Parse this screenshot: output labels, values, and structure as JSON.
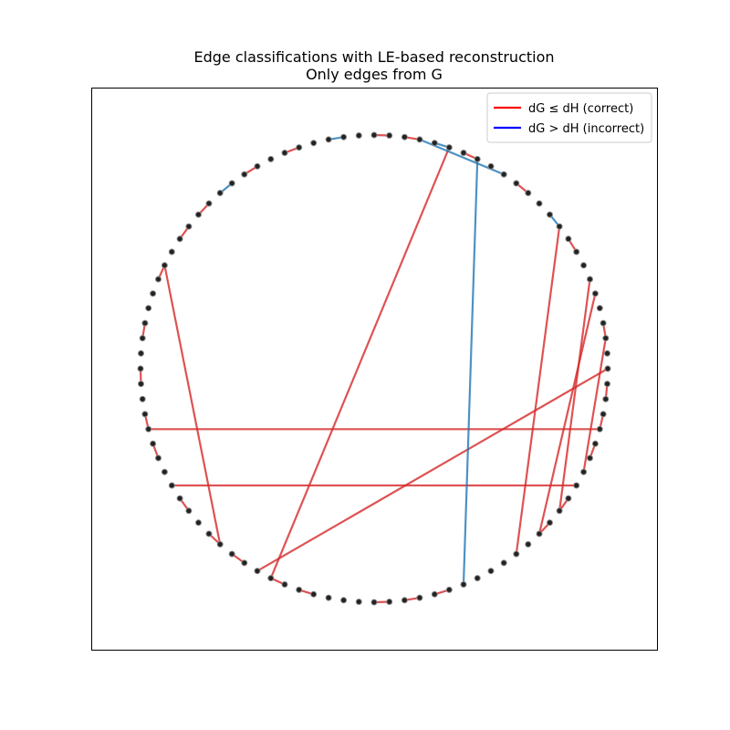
{
  "figure": {
    "title_line1": "Edge classifications with LE-based reconstruction",
    "title_line2": "Only edges from G"
  },
  "legend": {
    "position": "upper right",
    "items": [
      {
        "label": "dG ≤ dH (correct)",
        "color": "#ff0000",
        "kind": "correct"
      },
      {
        "label": "dG > dH (incorrect)",
        "color": "#0000ff",
        "kind": "incorrect"
      }
    ]
  },
  "colors": {
    "correct_edge": "#d62728",
    "incorrect_edge": "#1f77b4",
    "node": "#222222"
  },
  "graph": {
    "layout": "circular",
    "node_count": 96,
    "chords": [
      {
        "from": 14,
        "to": 38,
        "kind": "correct"
      },
      {
        "from": 18,
        "to": 34,
        "kind": "correct"
      },
      {
        "from": 22,
        "to": 31,
        "kind": "correct"
      },
      {
        "from": 19,
        "to": 36,
        "kind": "correct"
      },
      {
        "from": 24,
        "to": 56,
        "kind": "correct"
      },
      {
        "from": 28,
        "to": 68,
        "kind": "correct"
      },
      {
        "from": 32,
        "to": 64,
        "kind": "correct"
      },
      {
        "from": 5,
        "to": 55,
        "kind": "correct"
      },
      {
        "from": 59,
        "to": 79,
        "kind": "correct"
      },
      {
        "from": 3,
        "to": 9,
        "kind": "incorrect"
      },
      {
        "from": 42,
        "to": 7,
        "kind": "incorrect"
      }
    ],
    "short_edges": [
      {
        "from": 0,
        "to": 1,
        "kind": "correct"
      },
      {
        "from": 2,
        "to": 3,
        "kind": "correct"
      },
      {
        "from": 4,
        "to": 5,
        "kind": "incorrect"
      },
      {
        "from": 6,
        "to": 7,
        "kind": "correct"
      },
      {
        "from": 10,
        "to": 11,
        "kind": "correct"
      },
      {
        "from": 13,
        "to": 14,
        "kind": "incorrect"
      },
      {
        "from": 15,
        "to": 16,
        "kind": "correct"
      },
      {
        "from": 21,
        "to": 22,
        "kind": "correct"
      },
      {
        "from": 25,
        "to": 26,
        "kind": "correct"
      },
      {
        "from": 27,
        "to": 28,
        "kind": "correct"
      },
      {
        "from": 29,
        "to": 30,
        "kind": "correct"
      },
      {
        "from": 33,
        "to": 34,
        "kind": "correct"
      },
      {
        "from": 35,
        "to": 36,
        "kind": "correct"
      },
      {
        "from": 43,
        "to": 44,
        "kind": "correct"
      },
      {
        "from": 45,
        "to": 46,
        "kind": "correct"
      },
      {
        "from": 47,
        "to": 48,
        "kind": "correct"
      },
      {
        "from": 52,
        "to": 53,
        "kind": "correct"
      },
      {
        "from": 54,
        "to": 55,
        "kind": "correct"
      },
      {
        "from": 57,
        "to": 58,
        "kind": "correct"
      },
      {
        "from": 59,
        "to": 60,
        "kind": "correct"
      },
      {
        "from": 62,
        "to": 63,
        "kind": "correct"
      },
      {
        "from": 66,
        "to": 67,
        "kind": "correct"
      },
      {
        "from": 68,
        "to": 69,
        "kind": "correct"
      },
      {
        "from": 71,
        "to": 72,
        "kind": "correct"
      },
      {
        "from": 74,
        "to": 75,
        "kind": "correct"
      },
      {
        "from": 78,
        "to": 79,
        "kind": "correct"
      },
      {
        "from": 81,
        "to": 82,
        "kind": "correct"
      },
      {
        "from": 83,
        "to": 84,
        "kind": "correct"
      },
      {
        "from": 85,
        "to": 86,
        "kind": "incorrect"
      },
      {
        "from": 87,
        "to": 88,
        "kind": "correct"
      },
      {
        "from": 90,
        "to": 91,
        "kind": "correct"
      },
      {
        "from": 93,
        "to": 94,
        "kind": "incorrect"
      }
    ]
  }
}
